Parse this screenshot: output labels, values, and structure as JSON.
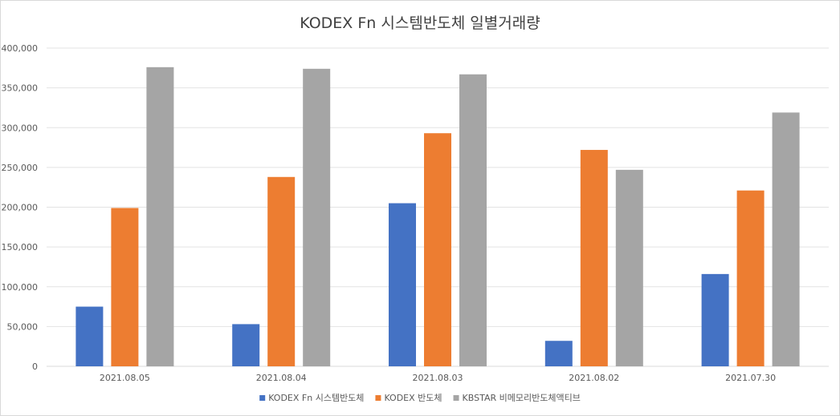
{
  "chart_data": {
    "type": "bar",
    "title": "KODEX Fn 시스템반도체 일별거래량",
    "xlabel": "",
    "ylabel": "",
    "ylim": [
      0,
      400000
    ],
    "ytick_step": 50000,
    "ytick_labels": [
      "0",
      "50,000",
      "100,000",
      "150,000",
      "200,000",
      "250,000",
      "300,000",
      "350,000",
      "400,000"
    ],
    "grid": true,
    "legend_position": "bottom",
    "categories": [
      "2021.08.05",
      "2021.08.04",
      "2021.08.03",
      "2021.08.02",
      "2021.07.30"
    ],
    "series": [
      {
        "name": "KODEX Fn 시스템반도체",
        "color": "#4472c4",
        "values": [
          75000,
          53000,
          205000,
          32000,
          116000
        ]
      },
      {
        "name": "KODEX 반도체",
        "color": "#ed7d31",
        "values": [
          199000,
          238000,
          293000,
          272000,
          221000
        ]
      },
      {
        "name": "KBSTAR 비메모리반도체액티브",
        "color": "#a5a5a5",
        "values": [
          376000,
          374000,
          367000,
          247000,
          319000
        ]
      }
    ]
  }
}
